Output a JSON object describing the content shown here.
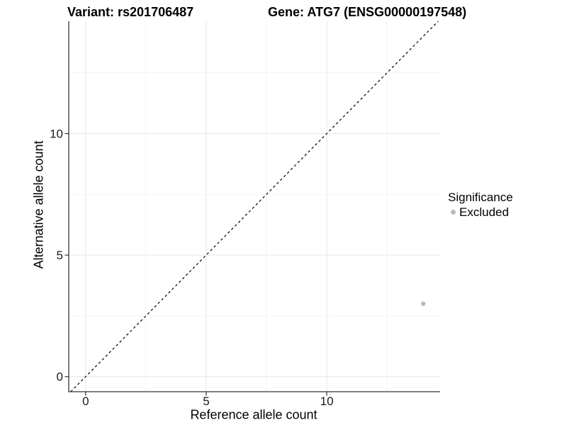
{
  "chart_data": {
    "type": "scatter",
    "title_left": "Variant: rs201706487",
    "title_right": "Gene: ATG7 (ENSG00000197548)",
    "xlabel": "Reference allele count",
    "ylabel": "Alternative allele count",
    "xlim": [
      -0.7,
      14.7
    ],
    "ylim": [
      -0.62,
      14.62
    ],
    "x_ticks": [
      0,
      5,
      10
    ],
    "y_ticks": [
      0,
      5,
      10
    ],
    "x_minor_ticks": [
      2.5,
      7.5,
      12.5
    ],
    "y_minor_ticks": [
      2.5,
      7.5,
      12.5
    ],
    "grid": "major and minor gridlines on white panel",
    "identity_line": {
      "equation": "y = x",
      "style": "dashed",
      "color": "#000000"
    },
    "series": [
      {
        "name": "Excluded",
        "color": "#b9b9b9",
        "points": [
          {
            "x": 14,
            "y": 3
          }
        ]
      }
    ],
    "legend": {
      "title": "Significance",
      "position": "right",
      "items": [
        {
          "label": "Excluded",
          "color": "#b9b9b9"
        }
      ]
    }
  },
  "colors": {
    "background": "#ffffff",
    "axis_line": "#333333",
    "tick_text": "#1a1a1a",
    "grid_major": "#e8e8e8",
    "grid_minor": "#f3f3f3",
    "title_text": "#000000"
  }
}
